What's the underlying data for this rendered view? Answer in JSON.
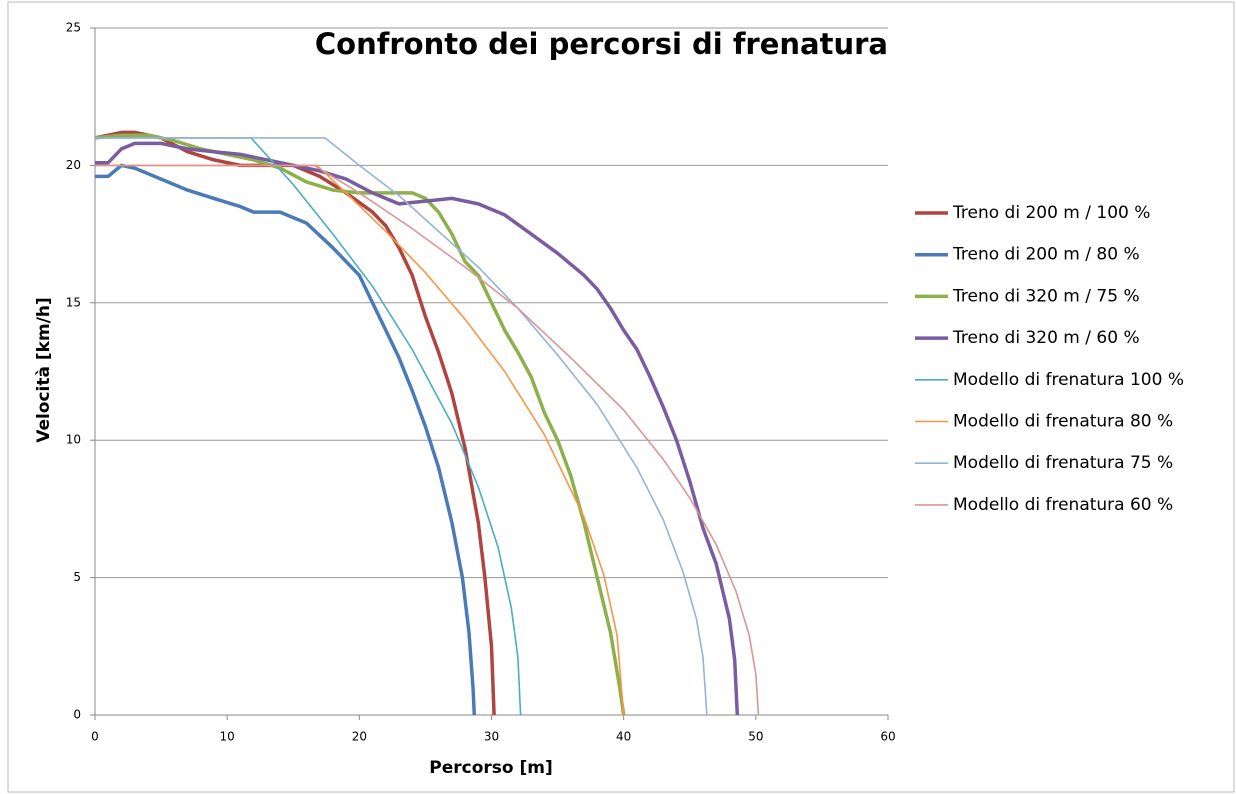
{
  "chart_data": {
    "type": "line",
    "title": "Confronto dei percorsi di frenatura",
    "x_label": "Percorso [m]",
    "y_label": "Velocità [km/h]",
    "xlim": [
      0,
      60
    ],
    "xticks": [
      0,
      10,
      20,
      30,
      40,
      50,
      60
    ],
    "ylim": [
      0,
      25
    ],
    "yticks": [
      0,
      5,
      10,
      15,
      20,
      25
    ],
    "grid": true,
    "legend": "right",
    "series": [
      {
        "name": "Treno di 200 m / 100 %",
        "color": "#b04540",
        "line_width": 3.5,
        "x": [
          0,
          1,
          2,
          3,
          5,
          7,
          9,
          11,
          13,
          15,
          17,
          19,
          21,
          22,
          23,
          24,
          25,
          26,
          27,
          28,
          29,
          29.5,
          30,
          30.2
        ],
        "values": [
          21.0,
          21.1,
          21.2,
          21.2,
          21.0,
          20.5,
          20.2,
          20.0,
          20.0,
          20.0,
          19.6,
          19.0,
          18.3,
          17.8,
          17.0,
          16.0,
          14.5,
          13.2,
          11.7,
          9.7,
          7.0,
          5.0,
          2.5,
          0
        ]
      },
      {
        "name": "Treno di 200 m / 80 %",
        "color": "#4a7bb7",
        "line_width": 3.5,
        "x": [
          0,
          1,
          2,
          3,
          5,
          7,
          9,
          11,
          12,
          14,
          16,
          18,
          20,
          21,
          22,
          23,
          24,
          25,
          26,
          27,
          27.8,
          28.3,
          28.6,
          28.7
        ],
        "values": [
          19.6,
          19.6,
          20.0,
          19.9,
          19.5,
          19.1,
          18.8,
          18.5,
          18.3,
          18.3,
          17.9,
          17.0,
          16.0,
          15.0,
          14.0,
          13.0,
          11.8,
          10.5,
          9.0,
          7.0,
          5.0,
          3.0,
          1.0,
          0
        ]
      },
      {
        "name": "Treno di 320 m / 75 %",
        "color": "#8db04a",
        "line_width": 3.5,
        "x": [
          0,
          2,
          4,
          6,
          8,
          10,
          12,
          14,
          16,
          18,
          20,
          22,
          24,
          25,
          26,
          27,
          28,
          29,
          30,
          31,
          32,
          33,
          34,
          35,
          36,
          37,
          38,
          39,
          39.7,
          40
        ],
        "values": [
          21.0,
          21.1,
          21.1,
          20.9,
          20.6,
          20.4,
          20.2,
          19.9,
          19.4,
          19.1,
          19.0,
          19.0,
          19.0,
          18.8,
          18.3,
          17.5,
          16.5,
          16.0,
          15.0,
          14.0,
          13.2,
          12.3,
          11.0,
          10.0,
          8.7,
          7.0,
          5.0,
          3.0,
          1.0,
          0
        ]
      },
      {
        "name": "Treno di 320 m / 60 %",
        "color": "#7a5ca0",
        "line_width": 3.5,
        "x": [
          0,
          1,
          2,
          3,
          5,
          7,
          9,
          11,
          13,
          15,
          17,
          19,
          21,
          23,
          25,
          27,
          29,
          31,
          33,
          35,
          37,
          38,
          39,
          40,
          41,
          42,
          43,
          44,
          45,
          46,
          47,
          48,
          48.4,
          48.6
        ],
        "values": [
          20.1,
          20.1,
          20.6,
          20.8,
          20.8,
          20.6,
          20.5,
          20.4,
          20.2,
          20.0,
          19.8,
          19.5,
          19.0,
          18.6,
          18.7,
          18.8,
          18.6,
          18.2,
          17.5,
          16.8,
          16.0,
          15.5,
          14.8,
          14.0,
          13.3,
          12.3,
          11.2,
          10.0,
          8.5,
          6.8,
          5.5,
          3.5,
          2.0,
          0
        ]
      },
      {
        "name": "Modello di frenatura 100 %",
        "color": "#4aacc6",
        "line_width": 1.6,
        "x": [
          0,
          11.8,
          15,
          18,
          21,
          24,
          27,
          29,
          30.5,
          31.5,
          32,
          32.2
        ],
        "values": [
          21,
          21,
          19.3,
          17.5,
          15.6,
          13.3,
          10.6,
          8.3,
          6.1,
          3.9,
          2.1,
          0
        ]
      },
      {
        "name": "Modello di frenatura 80 %",
        "color": "#f79646",
        "line_width": 1.6,
        "x": [
          0,
          16.8,
          19,
          22,
          25,
          28,
          31,
          34,
          37,
          38.5,
          39.5,
          40
        ],
        "values": [
          20,
          20,
          19.0,
          17.6,
          16.1,
          14.4,
          12.5,
          10.2,
          7.2,
          5.1,
          2.9,
          0
        ]
      },
      {
        "name": "Modello di frenatura 75 %",
        "color": "#95b3d7",
        "line_width": 1.6,
        "x": [
          0,
          17.4,
          20,
          23,
          26,
          29,
          32,
          35,
          38,
          41,
          43,
          44.5,
          45.5,
          46,
          46.3
        ],
        "values": [
          21,
          21,
          20.0,
          18.9,
          17.6,
          16.3,
          14.8,
          13.1,
          11.3,
          9.0,
          7.1,
          5.2,
          3.5,
          2.1,
          0
        ]
      },
      {
        "name": "Modello di frenatura 60 %",
        "color": "#d99694",
        "line_width": 1.6,
        "x": [
          0,
          16.6,
          20,
          24,
          28,
          32,
          36,
          40,
          43,
          45,
          47,
          48.5,
          49.5,
          50,
          50.2
        ],
        "values": [
          20,
          20,
          19.0,
          17.7,
          16.3,
          14.8,
          13.0,
          11.1,
          9.3,
          7.9,
          6.2,
          4.5,
          2.9,
          1.5,
          0
        ]
      }
    ]
  }
}
